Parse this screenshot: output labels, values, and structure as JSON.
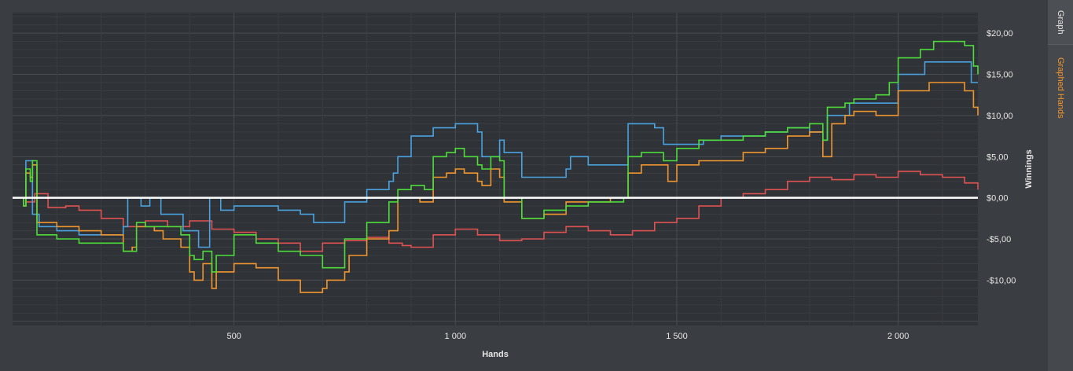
{
  "tabs": {
    "graph": "Graph",
    "graphed_hands": "Graphed Hands"
  },
  "colors": {
    "background": "#3a3d42",
    "plot_background": "#2f3236",
    "grid_major": "#4a4d52",
    "grid_minor": "#3a3d41",
    "zero_line": "#ffffff",
    "axis_text": "#e6e6e6",
    "tab_active": "#f0962e"
  },
  "chart_data": {
    "type": "line",
    "xlabel": "Hands",
    "ylabel": "Winnings",
    "xlim": [
      0,
      2180
    ],
    "ylim": [
      -15.5,
      22.5
    ],
    "x_ticks": [
      {
        "value": 500,
        "label": "500"
      },
      {
        "value": 1000,
        "label": "1 000"
      },
      {
        "value": 1500,
        "label": "1 500"
      },
      {
        "value": 2000,
        "label": "2 000"
      }
    ],
    "y_ticks": [
      {
        "value": 20,
        "label": "$20,00"
      },
      {
        "value": 15,
        "label": "$15,00"
      },
      {
        "value": 10,
        "label": "$10,00"
      },
      {
        "value": 5,
        "label": "$5,00"
      },
      {
        "value": 0,
        "label": "$0,00"
      },
      {
        "value": -5,
        "label": "-$5,00"
      },
      {
        "value": -10,
        "label": "-$10,00"
      }
    ],
    "grid": true,
    "series": [
      {
        "color": "#e05252",
        "points": [
          [
            0,
            0
          ],
          [
            30,
            -0.5
          ],
          [
            50,
            0.5
          ],
          [
            80,
            -1.2
          ],
          [
            120,
            -1
          ],
          [
            150,
            -1.5
          ],
          [
            200,
            -2.5
          ],
          [
            250,
            -3.5
          ],
          [
            300,
            -2.8
          ],
          [
            350,
            -3.5
          ],
          [
            400,
            -2.8
          ],
          [
            450,
            -3.8
          ],
          [
            500,
            -4.2
          ],
          [
            550,
            -5
          ],
          [
            600,
            -5.5
          ],
          [
            650,
            -6.5
          ],
          [
            700,
            -5.5
          ],
          [
            750,
            -5.2
          ],
          [
            800,
            -4.8
          ],
          [
            850,
            -5.5
          ],
          [
            880,
            -5.8
          ],
          [
            900,
            -6
          ],
          [
            950,
            -4.5
          ],
          [
            1000,
            -3.8
          ],
          [
            1050,
            -4.5
          ],
          [
            1100,
            -5.2
          ],
          [
            1150,
            -5
          ],
          [
            1200,
            -4.2
          ],
          [
            1250,
            -3.5
          ],
          [
            1300,
            -4
          ],
          [
            1350,
            -4.5
          ],
          [
            1400,
            -4
          ],
          [
            1450,
            -3
          ],
          [
            1500,
            -2.5
          ],
          [
            1550,
            -1
          ],
          [
            1600,
            0
          ],
          [
            1650,
            0.5
          ],
          [
            1700,
            1
          ],
          [
            1750,
            2
          ],
          [
            1800,
            2.5
          ],
          [
            1850,
            2.2
          ],
          [
            1900,
            2.8
          ],
          [
            1950,
            2.5
          ],
          [
            2000,
            3.2
          ],
          [
            2050,
            2.8
          ],
          [
            2100,
            2.5
          ],
          [
            2150,
            1.8
          ],
          [
            2180,
            1
          ]
        ]
      },
      {
        "color": "#4aa3df",
        "points": [
          [
            0,
            0
          ],
          [
            25,
            -1
          ],
          [
            30,
            4.5
          ],
          [
            40,
            4.5
          ],
          [
            45,
            -2
          ],
          [
            60,
            -3.5
          ],
          [
            100,
            -4
          ],
          [
            150,
            -4.5
          ],
          [
            200,
            -4.5
          ],
          [
            250,
            -3.5
          ],
          [
            260,
            0
          ],
          [
            280,
            0
          ],
          [
            290,
            -1
          ],
          [
            300,
            -1
          ],
          [
            310,
            0
          ],
          [
            330,
            0
          ],
          [
            335,
            -2
          ],
          [
            380,
            -2
          ],
          [
            385,
            -4
          ],
          [
            400,
            -4
          ],
          [
            420,
            -6
          ],
          [
            440,
            -6
          ],
          [
            445,
            0
          ],
          [
            460,
            0
          ],
          [
            470,
            -1.5
          ],
          [
            500,
            -1
          ],
          [
            550,
            -1
          ],
          [
            600,
            -1.5
          ],
          [
            650,
            -2
          ],
          [
            680,
            -3
          ],
          [
            740,
            -3
          ],
          [
            750,
            -0.5
          ],
          [
            800,
            1
          ],
          [
            850,
            2
          ],
          [
            860,
            3
          ],
          [
            870,
            5
          ],
          [
            900,
            7.5
          ],
          [
            950,
            8.5
          ],
          [
            1000,
            9
          ],
          [
            1050,
            8
          ],
          [
            1060,
            5
          ],
          [
            1100,
            7
          ],
          [
            1110,
            5.5
          ],
          [
            1150,
            2.5
          ],
          [
            1200,
            2.5
          ],
          [
            1250,
            3.5
          ],
          [
            1260,
            5
          ],
          [
            1300,
            4
          ],
          [
            1380,
            4
          ],
          [
            1390,
            9
          ],
          [
            1450,
            8.5
          ],
          [
            1470,
            6.5
          ],
          [
            1520,
            6.5
          ],
          [
            1560,
            7
          ],
          [
            1600,
            7.5
          ],
          [
            1650,
            7.5
          ],
          [
            1700,
            8
          ],
          [
            1750,
            8.5
          ],
          [
            1800,
            8
          ],
          [
            1830,
            7
          ],
          [
            1840,
            10
          ],
          [
            1880,
            10
          ],
          [
            1890,
            11.5
          ],
          [
            1950,
            11.5
          ],
          [
            1990,
            11.5
          ],
          [
            2000,
            15
          ],
          [
            2050,
            15
          ],
          [
            2060,
            16.5
          ],
          [
            2150,
            16.5
          ],
          [
            2165,
            14
          ],
          [
            2180,
            14
          ]
        ]
      },
      {
        "color": "#f0962e",
        "points": [
          [
            0,
            0
          ],
          [
            25,
            -1
          ],
          [
            30,
            3
          ],
          [
            40,
            2.5
          ],
          [
            45,
            4
          ],
          [
            55,
            -3
          ],
          [
            100,
            -3.5
          ],
          [
            150,
            -4
          ],
          [
            200,
            -4.5
          ],
          [
            240,
            -4.5
          ],
          [
            250,
            -6.5
          ],
          [
            270,
            -6
          ],
          [
            280,
            -3.5
          ],
          [
            320,
            -4
          ],
          [
            340,
            -5
          ],
          [
            380,
            -6
          ],
          [
            400,
            -9
          ],
          [
            410,
            -10
          ],
          [
            430,
            -8
          ],
          [
            450,
            -11
          ],
          [
            460,
            -9
          ],
          [
            500,
            -8
          ],
          [
            550,
            -8.5
          ],
          [
            600,
            -10
          ],
          [
            650,
            -11.5
          ],
          [
            700,
            -11
          ],
          [
            710,
            -10
          ],
          [
            750,
            -9
          ],
          [
            760,
            -7
          ],
          [
            800,
            -5
          ],
          [
            850,
            -4
          ],
          [
            870,
            0
          ],
          [
            900,
            0
          ],
          [
            920,
            -0.5
          ],
          [
            950,
            2.5
          ],
          [
            980,
            3
          ],
          [
            1000,
            3.5
          ],
          [
            1020,
            3
          ],
          [
            1050,
            2
          ],
          [
            1060,
            1.5
          ],
          [
            1080,
            3.5
          ],
          [
            1100,
            2.5
          ],
          [
            1110,
            -0.5
          ],
          [
            1150,
            -2.5
          ],
          [
            1200,
            -2
          ],
          [
            1250,
            -0.5
          ],
          [
            1300,
            -0.5
          ],
          [
            1350,
            0
          ],
          [
            1380,
            0
          ],
          [
            1390,
            3
          ],
          [
            1420,
            4
          ],
          [
            1450,
            4
          ],
          [
            1480,
            2
          ],
          [
            1500,
            4
          ],
          [
            1550,
            4.5
          ],
          [
            1600,
            4.5
          ],
          [
            1650,
            5.5
          ],
          [
            1700,
            6
          ],
          [
            1750,
            7.5
          ],
          [
            1800,
            8
          ],
          [
            1830,
            5
          ],
          [
            1850,
            9
          ],
          [
            1880,
            10
          ],
          [
            1900,
            10.5
          ],
          [
            1950,
            10
          ],
          [
            1990,
            10
          ],
          [
            2000,
            13
          ],
          [
            2050,
            13
          ],
          [
            2070,
            14
          ],
          [
            2100,
            14
          ],
          [
            2150,
            13
          ],
          [
            2170,
            11
          ],
          [
            2180,
            10
          ]
        ]
      },
      {
        "color": "#4ddc3a",
        "points": [
          [
            0,
            0
          ],
          [
            25,
            -1
          ],
          [
            30,
            3.5
          ],
          [
            40,
            2
          ],
          [
            45,
            4.5
          ],
          [
            55,
            -4.5
          ],
          [
            100,
            -5
          ],
          [
            150,
            -5.5
          ],
          [
            200,
            -5.5
          ],
          [
            240,
            -5.5
          ],
          [
            250,
            -6.5
          ],
          [
            270,
            -6.5
          ],
          [
            280,
            -3
          ],
          [
            300,
            -3.5
          ],
          [
            340,
            -3.5
          ],
          [
            380,
            -4.5
          ],
          [
            400,
            -7
          ],
          [
            410,
            -7.5
          ],
          [
            430,
            -6.5
          ],
          [
            450,
            -9
          ],
          [
            460,
            -7
          ],
          [
            500,
            -4.5
          ],
          [
            550,
            -5.5
          ],
          [
            600,
            -6.5
          ],
          [
            650,
            -7
          ],
          [
            700,
            -8.5
          ],
          [
            740,
            -8.5
          ],
          [
            750,
            -5
          ],
          [
            800,
            -3
          ],
          [
            850,
            -0.5
          ],
          [
            870,
            1
          ],
          [
            900,
            1.5
          ],
          [
            930,
            1
          ],
          [
            950,
            5
          ],
          [
            980,
            5.5
          ],
          [
            1000,
            6
          ],
          [
            1020,
            5
          ],
          [
            1050,
            4
          ],
          [
            1060,
            3.5
          ],
          [
            1080,
            5
          ],
          [
            1100,
            4.5
          ],
          [
            1110,
            0
          ],
          [
            1150,
            -2.5
          ],
          [
            1200,
            -1.5
          ],
          [
            1250,
            -1
          ],
          [
            1300,
            -0.5
          ],
          [
            1350,
            -0.5
          ],
          [
            1380,
            0
          ],
          [
            1390,
            5
          ],
          [
            1420,
            5.5
          ],
          [
            1450,
            5.5
          ],
          [
            1470,
            4.5
          ],
          [
            1500,
            6
          ],
          [
            1550,
            7
          ],
          [
            1600,
            7
          ],
          [
            1650,
            7.5
          ],
          [
            1700,
            8
          ],
          [
            1750,
            8.5
          ],
          [
            1800,
            9
          ],
          [
            1830,
            7
          ],
          [
            1840,
            11
          ],
          [
            1880,
            11.5
          ],
          [
            1900,
            12
          ],
          [
            1950,
            12.5
          ],
          [
            1980,
            14
          ],
          [
            1990,
            14
          ],
          [
            2000,
            17
          ],
          [
            2050,
            18
          ],
          [
            2080,
            19
          ],
          [
            2150,
            18.5
          ],
          [
            2170,
            16
          ],
          [
            2180,
            15
          ]
        ]
      }
    ]
  }
}
